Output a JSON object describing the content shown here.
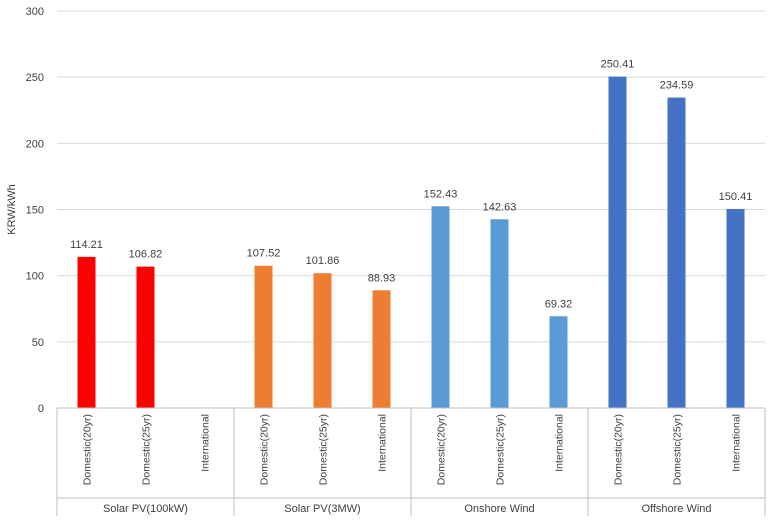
{
  "chart_data": {
    "type": "bar",
    "title": "",
    "xlabel": "",
    "ylabel": "KRW/kWh",
    "ylim": [
      0,
      300
    ],
    "yticks": [
      0,
      50,
      100,
      150,
      200,
      250,
      300
    ],
    "grid": true,
    "legend": "none",
    "groups": [
      {
        "name": "Solar PV(100kW)",
        "color": "#ff0000",
        "bars": [
          {
            "label": "Domestic(20yr)",
            "value": 114.21,
            "value_label": "114.21"
          },
          {
            "label": "Domestic(25yr)",
            "value": 106.82,
            "value_label": "106.82"
          },
          {
            "label": "International",
            "value": null,
            "value_label": ""
          }
        ]
      },
      {
        "name": "Solar PV(3MW)",
        "color": "#ed7d31",
        "bars": [
          {
            "label": "Domestic(20yr)",
            "value": 107.52,
            "value_label": "107.52"
          },
          {
            "label": "Domestic(25yr)",
            "value": 101.86,
            "value_label": "101.86"
          },
          {
            "label": "International",
            "value": 88.93,
            "value_label": "88.93"
          }
        ]
      },
      {
        "name": "Onshore Wind",
        "color": "#5b9bd5",
        "bars": [
          {
            "label": "Domestic(20yr)",
            "value": 152.43,
            "value_label": "152.43"
          },
          {
            "label": "Domestic(25yr)",
            "value": 142.63,
            "value_label": "142.63"
          },
          {
            "label": "International",
            "value": 69.32,
            "value_label": "69.32"
          }
        ]
      },
      {
        "name": "Offshore Wind",
        "color": "#4472c4",
        "bars": [
          {
            "label": "Domestic(20yr)",
            "value": 250.41,
            "value_label": "250.41"
          },
          {
            "label": "Domestic(25yr)",
            "value": 234.59,
            "value_label": "234.59"
          },
          {
            "label": "International",
            "value": 150.41,
            "value_label": "150.41"
          }
        ]
      }
    ]
  }
}
